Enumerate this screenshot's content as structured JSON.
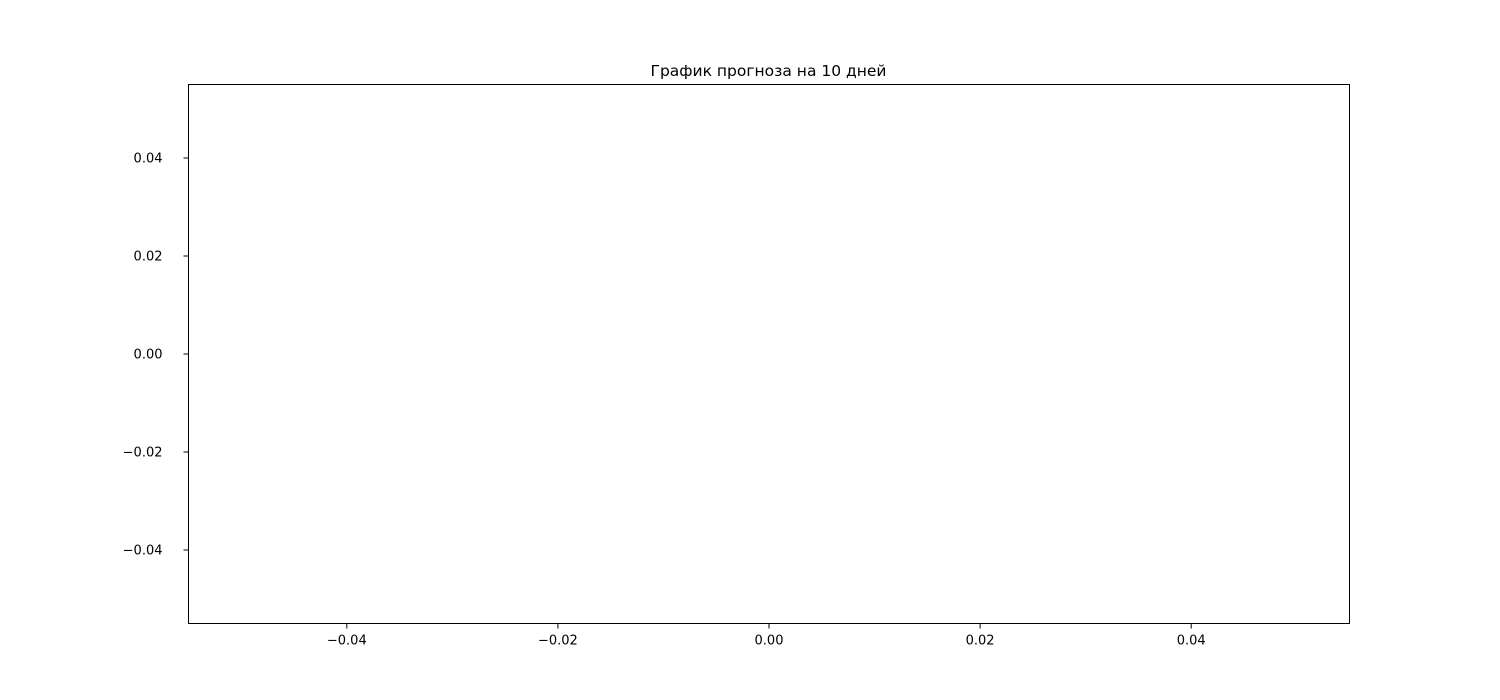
{
  "chart_data": {
    "type": "line",
    "title": "График прогноза на 10 дней",
    "xlabel": "",
    "ylabel": "",
    "xlim": [
      -0.055,
      0.055
    ],
    "ylim": [
      -0.055,
      0.055
    ],
    "x_ticks": [
      -0.04,
      -0.02,
      0.0,
      0.02,
      0.04
    ],
    "y_ticks": [
      0.04,
      0.02,
      0.0,
      -0.02,
      -0.04
    ],
    "x_tick_labels": [
      "−0.04",
      "−0.02",
      "0.00",
      "0.02",
      "0.04"
    ],
    "y_tick_labels": [
      "0.04",
      "0.02",
      "0.00",
      "−0.02",
      "−0.04"
    ],
    "grid": false,
    "series": [
      {
        "x": [],
        "y": []
      }
    ],
    "colors": {
      "axis": "#000000",
      "background": "#ffffff"
    }
  }
}
